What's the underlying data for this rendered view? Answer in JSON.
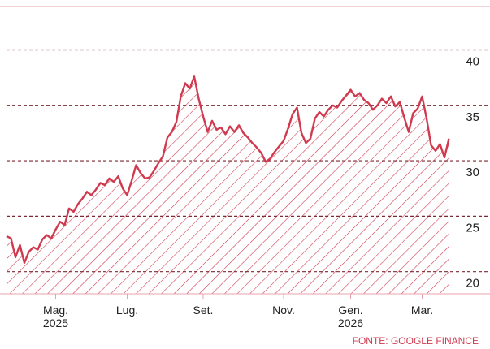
{
  "chart_data": {
    "type": "area",
    "source": "FONTE: GOOGLE FINANCE",
    "color": "#d03a4f",
    "grid": true,
    "ylim": [
      18,
      44.5
    ],
    "yticks": [
      20,
      25,
      30,
      35,
      40
    ],
    "categories": [
      null,
      null,
      null,
      null,
      null,
      null,
      null,
      null,
      null,
      null,
      null,
      "Mag.\n2025",
      null,
      null,
      null,
      null,
      null,
      null,
      null,
      null,
      null,
      null,
      null,
      null,
      null,
      null,
      null,
      "Lug.",
      null,
      null,
      null,
      null,
      null,
      null,
      null,
      null,
      null,
      null,
      null,
      null,
      null,
      null,
      null,
      null,
      "Set.",
      null,
      null,
      null,
      null,
      null,
      null,
      null,
      null,
      null,
      null,
      null,
      null,
      null,
      null,
      null,
      null,
      null,
      "Nov.",
      null,
      null,
      null,
      null,
      null,
      null,
      null,
      null,
      null,
      null,
      null,
      null,
      null,
      null,
      "Gen.\n2026",
      null,
      null,
      null,
      null,
      null,
      null,
      null,
      null,
      null,
      null,
      null,
      null,
      null,
      null,
      null,
      "Mar.",
      null,
      null,
      null,
      null,
      null,
      null
    ],
    "values": [
      23.2,
      23.0,
      21.3,
      22.4,
      20.8,
      21.8,
      22.2,
      22.0,
      22.9,
      23.3,
      23.0,
      23.8,
      24.5,
      24.2,
      25.7,
      25.4,
      26.1,
      26.6,
      27.2,
      26.9,
      27.4,
      28.0,
      27.8,
      28.4,
      28.1,
      28.6,
      27.5,
      26.9,
      28.2,
      29.6,
      28.9,
      28.4,
      28.5,
      29.1,
      29.8,
      30.4,
      32.1,
      32.6,
      33.5,
      35.8,
      37.0,
      36.5,
      37.6,
      35.6,
      34.0,
      32.6,
      33.6,
      32.8,
      33.0,
      32.4,
      33.1,
      32.6,
      33.2,
      32.5,
      32.1,
      31.6,
      31.2,
      30.7,
      29.9,
      30.2,
      30.8,
      31.3,
      31.8,
      32.9,
      34.2,
      34.8,
      32.5,
      31.6,
      32.0,
      33.8,
      34.4,
      34.0,
      34.6,
      35.0,
      34.8,
      35.4,
      35.9,
      36.4,
      35.8,
      36.1,
      35.5,
      35.2,
      34.6,
      35.0,
      35.6,
      35.2,
      35.8,
      34.9,
      35.3,
      33.9,
      32.6,
      34.3,
      34.7,
      35.8,
      33.8,
      31.4,
      30.9,
      31.5,
      30.3,
      32.0
    ]
  }
}
